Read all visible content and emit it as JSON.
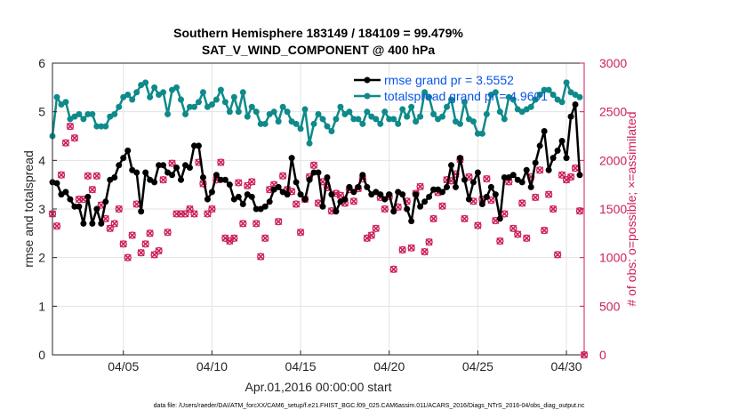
{
  "chart_data": {
    "type": "line",
    "title": [
      "Southern Hemisphere 183149 / 184109 = 99.479%",
      "SAT_V_WIND_COMPONENT @ 400 hPa"
    ],
    "xlabel": "Apr.01,2016 00:00:00 start",
    "ylabel": "rmse and totalspread",
    "ylabel_right": "# of obs: o=possible; ×=assimilated",
    "x_tick_labels": [
      "04/05",
      "04/10",
      "04/15",
      "04/20",
      "04/25",
      "04/30"
    ],
    "x_tick_days": [
      5,
      10,
      15,
      20,
      25,
      30
    ],
    "xlim": [
      1,
      31
    ],
    "ylim": [
      0,
      6
    ],
    "y_ticks": [
      0,
      1,
      2,
      3,
      4,
      5,
      6
    ],
    "ylim_right": [
      0,
      3000
    ],
    "y_ticks_right": [
      0,
      500,
      1000,
      1500,
      2000,
      2500,
      3000
    ],
    "legend_position": "top-right",
    "colors": {
      "rmse": "#000000",
      "spread": "#0f8a8a",
      "obs": "#cc1e5b",
      "legend_text": "#0a55e6"
    },
    "series": [
      {
        "name": "rmse grand pr = 3.5552",
        "axis": "left",
        "marker": "o",
        "x": [
          1.0,
          1.25,
          1.5,
          1.75,
          2.0,
          2.25,
          2.5,
          2.75,
          3.0,
          3.25,
          3.5,
          3.75,
          4.0,
          4.25,
          4.5,
          4.75,
          5.0,
          5.25,
          5.5,
          5.75,
          6.0,
          6.25,
          6.5,
          6.75,
          7.0,
          7.25,
          7.5,
          7.75,
          8.0,
          8.25,
          8.5,
          8.75,
          9.0,
          9.25,
          9.5,
          9.75,
          10.0,
          10.25,
          10.5,
          10.75,
          11.0,
          11.25,
          11.5,
          11.75,
          12.0,
          12.25,
          12.5,
          12.75,
          13.0,
          13.25,
          13.5,
          13.75,
          14.0,
          14.25,
          14.5,
          14.75,
          15.0,
          15.25,
          15.5,
          15.75,
          16.0,
          16.25,
          16.5,
          16.75,
          17.0,
          17.25,
          17.5,
          17.75,
          18.0,
          18.25,
          18.5,
          18.75,
          19.0,
          19.25,
          19.5,
          19.75,
          20.0,
          20.25,
          20.5,
          20.75,
          21.0,
          21.25,
          21.5,
          21.75,
          22.0,
          22.25,
          22.5,
          22.75,
          23.0,
          23.25,
          23.5,
          23.75,
          24.0,
          24.25,
          24.5,
          24.75,
          25.0,
          25.25,
          25.5,
          25.75,
          26.0,
          26.25,
          26.5,
          26.75,
          27.0,
          27.25,
          27.5,
          27.75,
          28.0,
          28.25,
          28.5,
          28.75,
          29.0,
          29.25,
          29.5,
          29.75,
          30.0,
          30.25,
          30.5,
          30.75
        ],
        "values": [
          3.55,
          3.53,
          3.3,
          3.35,
          3.2,
          3.05,
          3.05,
          2.7,
          3.25,
          2.7,
          3.0,
          2.7,
          3.15,
          3.6,
          3.65,
          3.9,
          4.05,
          4.2,
          3.8,
          3.75,
          2.95,
          3.75,
          3.6,
          3.55,
          3.9,
          3.9,
          3.75,
          3.7,
          3.85,
          3.6,
          3.9,
          3.85,
          4.3,
          4.3,
          3.65,
          3.2,
          3.35,
          3.7,
          3.6,
          3.6,
          3.5,
          3.2,
          3.25,
          3.1,
          3.3,
          3.25,
          3.0,
          3.0,
          3.05,
          3.15,
          3.4,
          3.45,
          3.35,
          3.3,
          4.05,
          3.55,
          3.3,
          3.2,
          3.6,
          3.75,
          3.75,
          3.05,
          3.65,
          3.3,
          2.95,
          3.15,
          3.2,
          3.45,
          3.35,
          3.45,
          3.7,
          3.45,
          3.3,
          3.35,
          3.3,
          3.2,
          3.3,
          2.95,
          3.35,
          3.3,
          3.0,
          2.75,
          3.3,
          3.05,
          3.15,
          3.25,
          3.4,
          3.4,
          3.35,
          3.45,
          3.9,
          3.45,
          4.05,
          3.6,
          3.2,
          3.55,
          3.75,
          3.1,
          3.25,
          3.45,
          3.3,
          2.8,
          3.65,
          3.65,
          3.7,
          3.6,
          3.55,
          3.8,
          3.45,
          3.95,
          4.3,
          4.6,
          3.8,
          4.05,
          4.2,
          4.4,
          4.05,
          4.9,
          5.15,
          3.7
        ]
      },
      {
        "name": "totalspread grand pr = 4.9601",
        "axis": "left",
        "marker": "o",
        "x": [
          1.0,
          1.25,
          1.5,
          1.75,
          2.0,
          2.25,
          2.5,
          2.75,
          3.0,
          3.25,
          3.5,
          3.75,
          4.0,
          4.25,
          4.5,
          4.75,
          5.0,
          5.25,
          5.5,
          5.75,
          6.0,
          6.25,
          6.5,
          6.75,
          7.0,
          7.25,
          7.5,
          7.75,
          8.0,
          8.25,
          8.5,
          8.75,
          9.0,
          9.25,
          9.5,
          9.75,
          10.0,
          10.25,
          10.5,
          10.75,
          11.0,
          11.25,
          11.5,
          11.75,
          12.0,
          12.25,
          12.5,
          12.75,
          13.0,
          13.25,
          13.5,
          13.75,
          14.0,
          14.25,
          14.5,
          14.75,
          15.0,
          15.25,
          15.5,
          15.75,
          16.0,
          16.25,
          16.5,
          16.75,
          17.0,
          17.25,
          17.5,
          17.75,
          18.0,
          18.25,
          18.5,
          18.75,
          19.0,
          19.25,
          19.5,
          19.75,
          20.0,
          20.25,
          20.5,
          20.75,
          21.0,
          21.25,
          21.5,
          21.75,
          22.0,
          22.25,
          22.5,
          22.75,
          23.0,
          23.25,
          23.5,
          23.75,
          24.0,
          24.25,
          24.5,
          24.75,
          25.0,
          25.25,
          25.5,
          25.75,
          26.0,
          26.25,
          26.5,
          26.75,
          27.0,
          27.25,
          27.5,
          27.75,
          28.0,
          28.25,
          28.5,
          28.75,
          29.0,
          29.25,
          29.5,
          29.75,
          30.0,
          30.25,
          30.5,
          30.75
        ],
        "values": [
          4.5,
          5.3,
          5.15,
          5.2,
          4.85,
          4.9,
          4.95,
          4.85,
          4.95,
          4.95,
          4.7,
          4.7,
          4.7,
          4.9,
          4.95,
          5.1,
          5.3,
          5.35,
          5.25,
          5.4,
          5.55,
          5.6,
          5.3,
          5.5,
          5.35,
          5.4,
          4.95,
          5.45,
          5.5,
          5.25,
          4.95,
          5.1,
          5.1,
          5.2,
          5.4,
          5.1,
          5.15,
          5.25,
          5.45,
          5.2,
          5.0,
          5.3,
          5.0,
          5.4,
          4.9,
          5.1,
          5.0,
          4.75,
          4.75,
          4.95,
          5.0,
          4.8,
          5.1,
          5.0,
          4.8,
          4.75,
          4.65,
          5.05,
          4.35,
          4.75,
          4.95,
          4.85,
          4.7,
          4.6,
          4.85,
          5.1,
          4.95,
          5.0,
          4.85,
          4.85,
          4.75,
          5.0,
          4.9,
          4.85,
          4.75,
          5.0,
          4.85,
          4.85,
          4.75,
          5.05,
          4.9,
          5.1,
          4.8,
          4.9,
          5.4,
          5.3,
          4.95,
          4.85,
          4.9,
          5.1,
          5.25,
          4.8,
          4.75,
          5.2,
          4.85,
          4.8,
          4.55,
          4.55,
          4.95,
          5.35,
          5.4,
          5.0,
          4.85,
          5.3,
          5.25,
          5.05,
          5.0,
          5.05,
          5.1,
          5.25,
          5.35,
          5.45,
          5.45,
          5.35,
          5.25,
          5.2,
          5.6,
          5.4,
          5.35,
          5.3
        ]
      },
      {
        "name": "# of obs possible",
        "axis": "right",
        "marker": "o",
        "x": [
          1.0,
          1.25,
          1.5,
          1.75,
          2.0,
          2.25,
          2.5,
          2.75,
          3.0,
          3.25,
          3.5,
          3.75,
          4.0,
          4.25,
          4.5,
          4.75,
          5.0,
          5.25,
          5.5,
          5.75,
          6.0,
          6.25,
          6.5,
          6.75,
          7.0,
          7.25,
          7.5,
          7.75,
          8.0,
          8.25,
          8.5,
          8.75,
          9.0,
          9.25,
          9.5,
          9.75,
          10.0,
          10.25,
          10.5,
          10.75,
          11.0,
          11.25,
          11.5,
          11.75,
          12.0,
          12.25,
          12.5,
          12.75,
          13.0,
          13.25,
          13.5,
          13.75,
          14.0,
          14.25,
          14.5,
          14.75,
          15.0,
          15.25,
          15.5,
          15.75,
          16.0,
          16.25,
          16.5,
          16.75,
          17.0,
          17.25,
          17.5,
          17.75,
          18.0,
          18.25,
          18.5,
          18.75,
          19.0,
          19.25,
          19.5,
          19.75,
          20.0,
          20.25,
          20.5,
          20.75,
          21.0,
          21.25,
          21.5,
          21.75,
          22.0,
          22.25,
          22.5,
          22.75,
          23.0,
          23.25,
          23.5,
          23.75,
          24.0,
          24.25,
          24.5,
          24.75,
          25.0,
          25.25,
          25.5,
          25.75,
          26.0,
          26.25,
          26.5,
          26.75,
          27.0,
          27.25,
          27.5,
          27.75,
          28.0,
          28.25,
          28.5,
          28.75,
          29.0,
          29.25,
          29.5,
          29.75,
          30.0,
          30.25,
          30.5,
          30.75,
          31.0
        ],
        "values": [
          1450,
          1325,
          1850,
          2180,
          2350,
          2230,
          1600,
          1600,
          1840,
          1700,
          1840,
          1540,
          1400,
          1300,
          1350,
          1500,
          1140,
          1000,
          1230,
          1550,
          1050,
          1140,
          1250,
          1030,
          1070,
          1800,
          1260,
          1970,
          1450,
          1450,
          1450,
          1500,
          1450,
          1980,
          1760,
          1450,
          1500,
          1800,
          1980,
          1200,
          1170,
          1200,
          1770,
          1350,
          1740,
          1780,
          1350,
          1010,
          1200,
          1700,
          1750,
          1370,
          1840,
          1700,
          1680,
          1550,
          1260,
          1600,
          1830,
          1950,
          1560,
          1780,
          1720,
          1480,
          1660,
          1640,
          1560,
          1700,
          1580,
          1710,
          1810,
          1200,
          1230,
          1300,
          1620,
          1500,
          1630,
          880,
          1520,
          1080,
          1580,
          1100,
          1660,
          1730,
          1060,
          1160,
          1400,
          1670,
          1530,
          1800,
          1790,
          1860,
          2010,
          1400,
          1830,
          1580,
          1330,
          1600,
          1810,
          1590,
          1380,
          1170,
          1450,
          1780,
          1300,
          1240,
          1560,
          1200,
          1830,
          1620,
          1900,
          1280,
          1650,
          1500,
          1030,
          1850,
          1800,
          1830,
          1920,
          1480,
          0
        ]
      },
      {
        "name": "# of obs assimilated",
        "axis": "right",
        "marker": "x",
        "x": [
          1.0,
          1.25,
          1.5,
          1.75,
          2.0,
          2.25,
          2.5,
          2.75,
          3.0,
          3.25,
          3.5,
          3.75,
          4.0,
          4.25,
          4.5,
          4.75,
          5.0,
          5.25,
          5.5,
          5.75,
          6.0,
          6.25,
          6.5,
          6.75,
          7.0,
          7.25,
          7.5,
          7.75,
          8.0,
          8.25,
          8.5,
          8.75,
          9.0,
          9.25,
          9.5,
          9.75,
          10.0,
          10.25,
          10.5,
          10.75,
          11.0,
          11.25,
          11.5,
          11.75,
          12.0,
          12.25,
          12.5,
          12.75,
          13.0,
          13.25,
          13.5,
          13.75,
          14.0,
          14.25,
          14.5,
          14.75,
          15.0,
          15.25,
          15.5,
          15.75,
          16.0,
          16.25,
          16.5,
          16.75,
          17.0,
          17.25,
          17.5,
          17.75,
          18.0,
          18.25,
          18.5,
          18.75,
          19.0,
          19.25,
          19.5,
          19.75,
          20.0,
          20.25,
          20.5,
          20.75,
          21.0,
          21.25,
          21.5,
          21.75,
          22.0,
          22.25,
          22.5,
          22.75,
          23.0,
          23.25,
          23.5,
          23.75,
          24.0,
          24.25,
          24.5,
          24.75,
          25.0,
          25.25,
          25.5,
          25.75,
          26.0,
          26.25,
          26.5,
          26.75,
          27.0,
          27.25,
          27.5,
          27.75,
          28.0,
          28.25,
          28.5,
          28.75,
          29.0,
          29.25,
          29.5,
          29.75,
          30.0,
          30.25,
          30.5,
          30.75,
          31.0
        ],
        "values": [
          1450,
          1325,
          1850,
          2180,
          2350,
          2230,
          1600,
          1600,
          1840,
          1700,
          1840,
          1540,
          1400,
          1300,
          1350,
          1500,
          1140,
          1000,
          1230,
          1550,
          1050,
          1140,
          1250,
          1030,
          1070,
          1800,
          1260,
          1970,
          1450,
          1450,
          1450,
          1500,
          1450,
          1980,
          1760,
          1450,
          1500,
          1800,
          1980,
          1200,
          1170,
          1200,
          1770,
          1350,
          1740,
          1780,
          1350,
          1010,
          1200,
          1700,
          1750,
          1370,
          1840,
          1700,
          1680,
          1550,
          1260,
          1600,
          1830,
          1950,
          1560,
          1780,
          1720,
          1480,
          1660,
          1640,
          1560,
          1700,
          1580,
          1710,
          1810,
          1200,
          1230,
          1300,
          1620,
          1500,
          1630,
          880,
          1520,
          1080,
          1580,
          1100,
          1660,
          1730,
          1060,
          1160,
          1400,
          1670,
          1530,
          1800,
          1790,
          1860,
          2010,
          1400,
          1830,
          1580,
          1330,
          1600,
          1810,
          1590,
          1380,
          1170,
          1450,
          1780,
          1300,
          1240,
          1560,
          1200,
          1830,
          1620,
          1900,
          1280,
          1650,
          1500,
          1030,
          1850,
          1800,
          1830,
          1920,
          1480,
          0
        ]
      }
    ],
    "footnote": "data file: /Users/raeder/DAI/ATM_forcXX/CAM6_setup/f.e21.FHIST_BGC.f09_025.CAM6assim.011/ACARS_2016/Diags_NTrS_2016-04/obs_diag_output.nc"
  }
}
